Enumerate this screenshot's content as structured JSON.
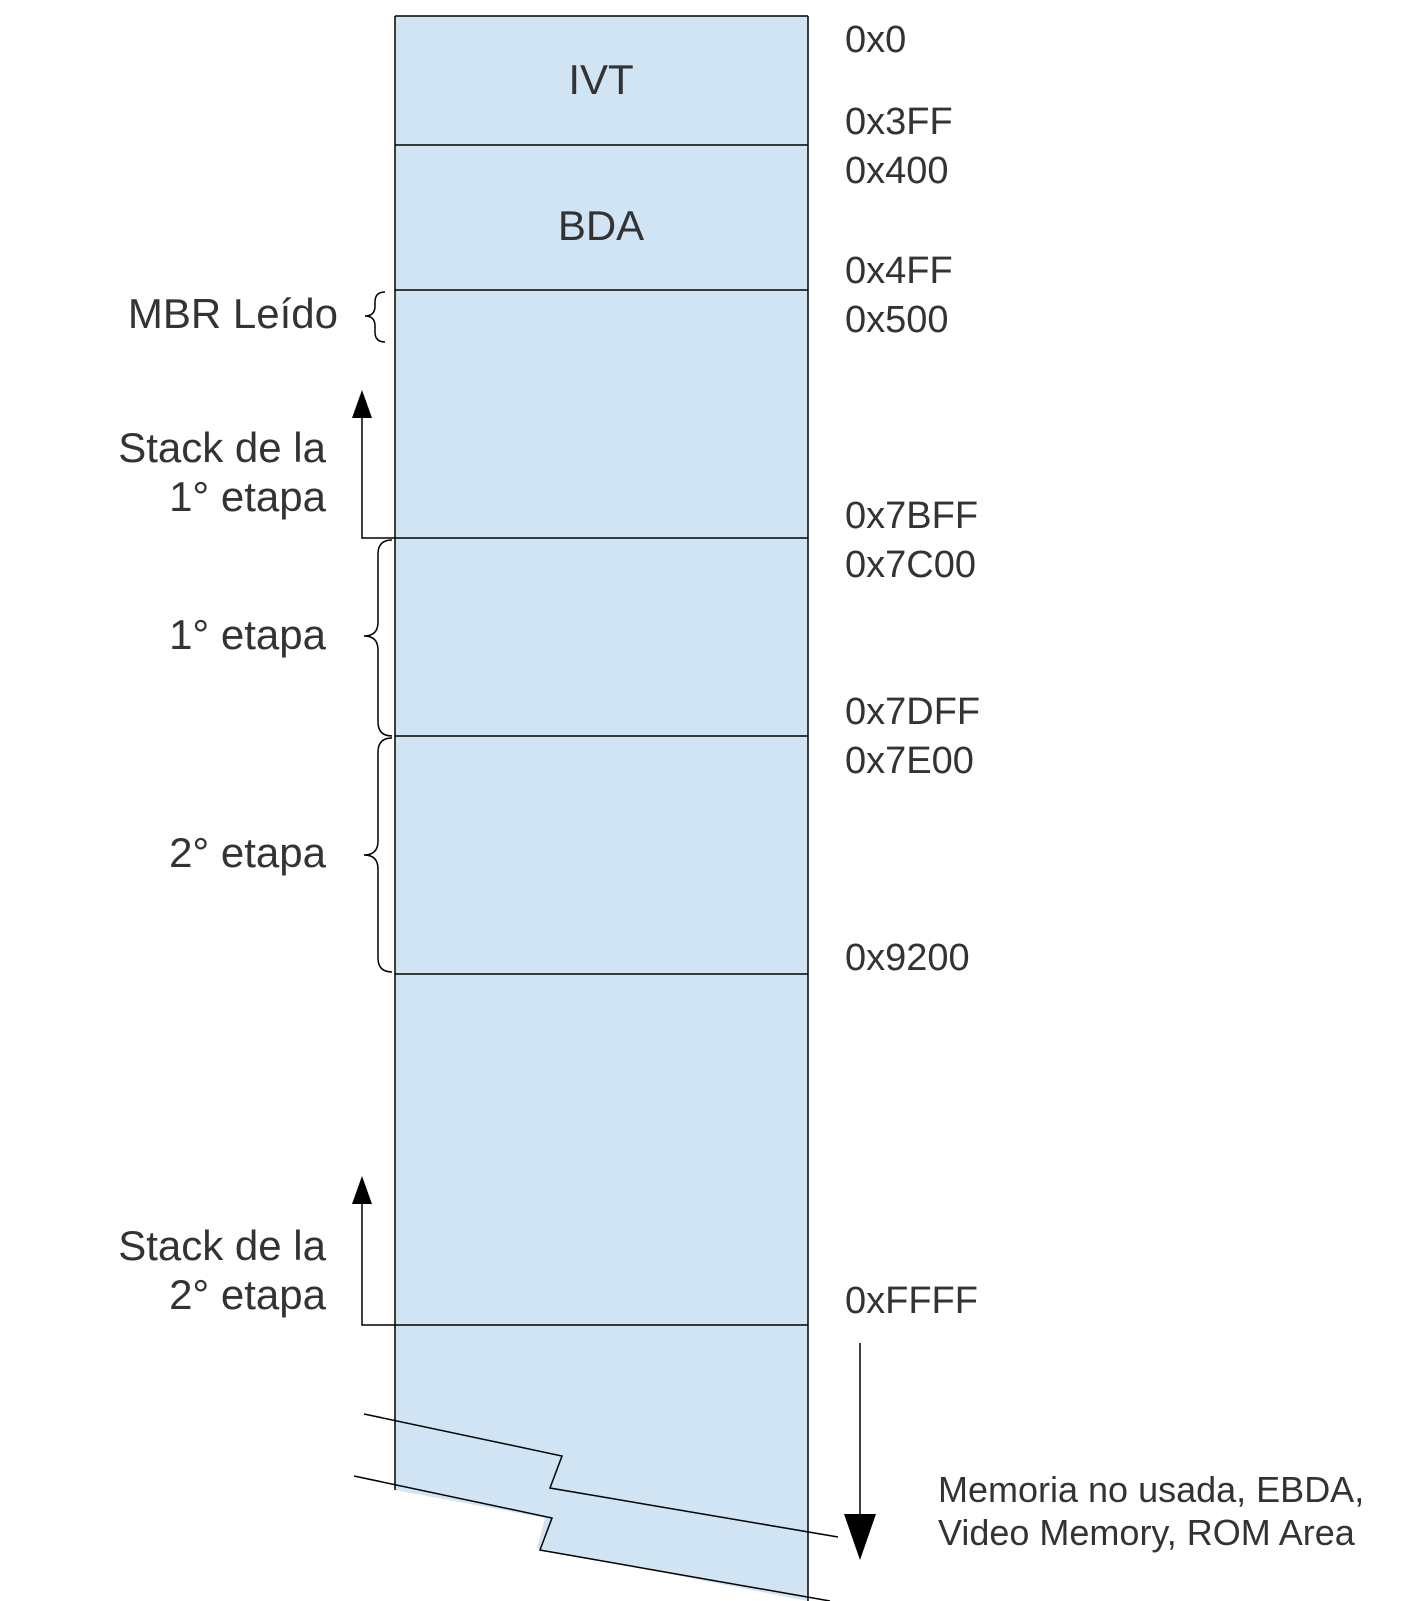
{
  "colors": {
    "region_fill": "#d0e4f3",
    "line": "#000000",
    "text": "#333333"
  },
  "regions": [
    {
      "id": "ivt",
      "label": "IVT"
    },
    {
      "id": "bda",
      "label": "BDA"
    }
  ],
  "addresses": [
    "0x0",
    "0x3FF",
    "0x400",
    "0x4FF",
    "0x500",
    "0x7BFF",
    "0x7C00",
    "0x7DFF",
    "0x7E00",
    "0x9200",
    "0xFFFF"
  ],
  "side_labels": {
    "mbr": "MBR Leído",
    "stack1_line1": "Stack de la",
    "stack1_line2": "1° etapa",
    "stage1": "1° etapa",
    "stage2": "2° etapa",
    "stack2_line1": "Stack de la",
    "stack2_line2": "2° etapa"
  },
  "note": {
    "line1": "Memoria no usada, EBDA,",
    "line2": "Video Memory, ROM Area"
  }
}
